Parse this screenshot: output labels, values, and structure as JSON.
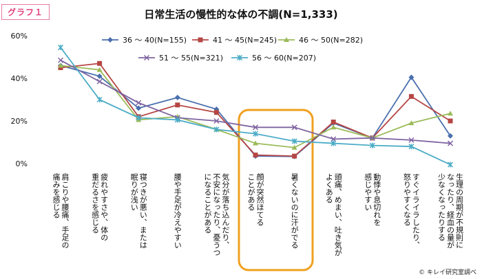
{
  "badge": "グラフ１",
  "credit": "© キレイ研究室調べ",
  "chart_data": {
    "type": "line",
    "title": "日常生活の慢性的な体の不調(N=1,333)",
    "ylim": [
      0,
      60
    ],
    "yticks": [
      "0%",
      "20%",
      "40%",
      "60%"
    ],
    "categories": [
      "肩こりや腰痛、手足の\n痛みを感じる",
      "疲れやすさや、体の\n重だるさを感じる",
      "寝つきが悪い、または\n眠りが浅い",
      "腰や手足が冷えやすい",
      "気分が落ち込んだり、\n不安になったり、憂うつ\nになることがある",
      "顔が突然ほてる\nことがある",
      "暑くないのに汗がでる",
      "頭痛、めまい、吐き気が\nよくある",
      "動悸や息切れを\n感じやすい",
      "すぐイライラしたり、\n怒りやすくなる",
      "生理の周期が不規則に\nなったり、経血の量が\n少なくなったりする"
    ],
    "series": [
      {
        "name": "36 ～ 40(N=155)",
        "color": "#4a6fae",
        "marker": "diamond",
        "values": [
          46,
          41,
          26,
          31,
          25.5,
          3.5,
          3.3,
          19,
          12,
          40.5,
          13
        ]
      },
      {
        "name": "41 ～ 45(N=245)",
        "color": "#b54644",
        "marker": "square",
        "values": [
          45,
          47,
          22,
          27.5,
          24,
          4,
          3.5,
          19.5,
          12,
          31.5,
          20
        ]
      },
      {
        "name": "46 ～ 50(N=282)",
        "color": "#9bbb59",
        "marker": "triangle",
        "values": [
          46,
          44,
          20.5,
          22,
          16,
          9.5,
          7.5,
          17,
          12,
          19,
          23.5
        ]
      },
      {
        "name": "51 ～ 55(N=321)",
        "color": "#7f64a1",
        "marker": "x",
        "values": [
          48.5,
          38.5,
          28.5,
          21.5,
          20,
          17,
          17,
          11.5,
          12,
          11,
          9.5
        ]
      },
      {
        "name": "56 ～ 60(N=207)",
        "color": "#4bacc6",
        "marker": "asterisk",
        "values": [
          54.5,
          30,
          21.5,
          20.5,
          16,
          14,
          10.5,
          9.5,
          8.5,
          8,
          -0.5
        ]
      }
    ],
    "legend_position": "top",
    "grid": false,
    "highlight": "orange rounded box around 顔が突然ほてることがある and 暑くないのに汗がでる"
  }
}
